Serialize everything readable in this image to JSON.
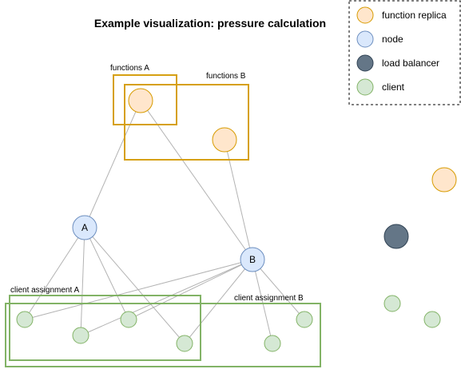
{
  "title": "Example visualization: pressure calculation",
  "legend": {
    "items": [
      {
        "label": "function replica",
        "fill": "#ffe6cc",
        "stroke": "#d79b00"
      },
      {
        "label": "node",
        "fill": "#dae8fc",
        "stroke": "#6c8ebf"
      },
      {
        "label": "load balancer",
        "fill": "#647687",
        "stroke": "#314354"
      },
      {
        "label": "client",
        "fill": "#d5e8d4",
        "stroke": "#82b366"
      }
    ]
  },
  "groups": {
    "functions_a": "functions A",
    "functions_b": "functions B",
    "client_assignment_a": "client assignment A",
    "client_assignment_b": "client assignment B"
  },
  "nodes": {
    "a": "A",
    "b": "B"
  },
  "colors": {
    "function_group": "#d6a012",
    "client_group": "#82b366",
    "edge": "#b3b3b3"
  }
}
